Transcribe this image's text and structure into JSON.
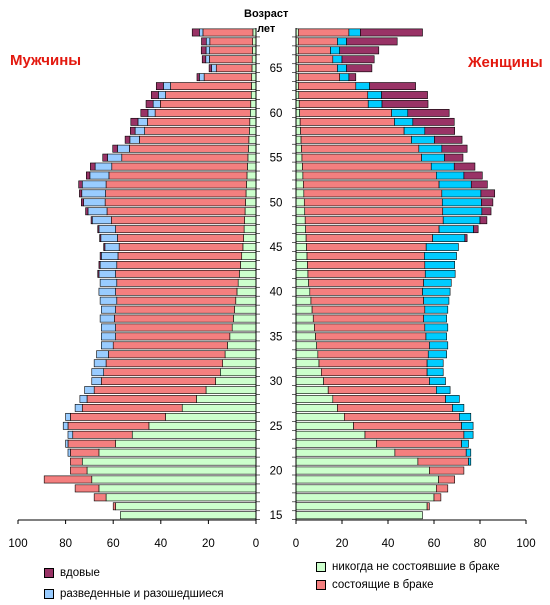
{
  "labels": {
    "male": "Мужчины",
    "female": "Женщины",
    "age_title_line1": "Возраст",
    "age_title_line2": "лет"
  },
  "legend": {
    "widowed": "вдовые",
    "divorced": "разведенные и разошедшиеся",
    "never_married": "никогда не состоявшие в браке",
    "married": "состоящие в браке"
  },
  "colors": {
    "never_married": "#ccffcc",
    "married": "#f47f7f",
    "divorced_male": "#99ccff",
    "divorced_female": "#00ccff",
    "widowed": "#993366"
  },
  "chart_data": {
    "type": "bar",
    "orientation": "horizontal",
    "title": "",
    "ylabel": "Возраст лет",
    "xlim": [
      0,
      100
    ],
    "ages": [
      15,
      16,
      17,
      18,
      19,
      20,
      21,
      22,
      23,
      24,
      25,
      26,
      27,
      28,
      29,
      30,
      31,
      32,
      33,
      34,
      35,
      36,
      37,
      38,
      39,
      40,
      41,
      42,
      43,
      44,
      45,
      46,
      47,
      48,
      49,
      50,
      51,
      52,
      53,
      54,
      55,
      56,
      57,
      58,
      59,
      60,
      61,
      62,
      63,
      64,
      65,
      66,
      67,
      68,
      69
    ],
    "age_ticks": [
      15,
      20,
      25,
      30,
      35,
      40,
      45,
      50,
      55,
      60,
      65
    ],
    "x_ticks": [
      100,
      80,
      60,
      40,
      20,
      0
    ],
    "male": {
      "never_married": [
        57,
        59,
        63,
        66,
        69,
        71,
        73,
        66,
        59,
        52,
        45,
        38,
        31,
        25,
        21,
        17,
        15,
        14,
        13,
        12,
        11,
        10,
        9.5,
        9,
        8.5,
        8,
        7.5,
        7,
        6.5,
        6,
        5.5,
        5.2,
        5,
        4.8,
        4.6,
        4.4,
        4.2,
        4,
        3.8,
        3.6,
        3.4,
        3.2,
        3,
        2.8,
        2.6,
        2.4,
        2.2,
        2,
        1.9,
        1.8,
        1.7,
        1.6,
        1.5,
        1.4,
        1.3
      ],
      "married": [
        0,
        1,
        5,
        10,
        20,
        7,
        5,
        12,
        20,
        25,
        34,
        40,
        42,
        46,
        47,
        48,
        49,
        49,
        49,
        48,
        48,
        49,
        50,
        50,
        50,
        51,
        51,
        52,
        52,
        52,
        52,
        53,
        54,
        56,
        58,
        59,
        59,
        59,
        58,
        57,
        53,
        50,
        46,
        44,
        43,
        40,
        38,
        36,
        34,
        20,
        15,
        18,
        18,
        18,
        21
      ],
      "divorced": [
        0,
        0,
        0,
        0,
        0,
        0,
        0,
        1,
        1,
        2,
        2,
        2,
        3,
        3,
        4,
        4,
        5,
        5,
        5,
        5,
        6,
        6,
        6,
        6,
        7,
        7,
        7,
        7,
        7,
        7,
        6,
        7,
        7,
        8,
        8,
        9,
        10,
        10,
        8,
        7,
        6,
        5,
        4,
        4,
        4,
        3,
        3,
        3,
        3,
        2,
        2,
        1.5,
        1.5,
        1.5,
        1.5
      ],
      "widowed": [
        0,
        0,
        0,
        0,
        0,
        0,
        0,
        0,
        0,
        0,
        0,
        0,
        0,
        0,
        0,
        0,
        0,
        0,
        0,
        0,
        0,
        0,
        0,
        0,
        0,
        0,
        0,
        0.5,
        0.5,
        0.5,
        0.5,
        0.5,
        0.5,
        0.5,
        1,
        1,
        1,
        1.5,
        1.5,
        2,
        2,
        2,
        2,
        2,
        3,
        3,
        3,
        3,
        3,
        1,
        1,
        1.5,
        2,
        2,
        3
      ]
    },
    "female": {
      "never_married": [
        55,
        57,
        60,
        61,
        62,
        58,
        53,
        43,
        35,
        30,
        25,
        21,
        18,
        16,
        14,
        12,
        11,
        10,
        9.5,
        9,
        8.5,
        8,
        7.5,
        7,
        6.5,
        6,
        5.5,
        5.2,
        5,
        4.8,
        4.6,
        4.4,
        4.2,
        4,
        3.8,
        3.6,
        3.4,
        3.2,
        3,
        2.8,
        2.6,
        2.4,
        2.2,
        2,
        1.8,
        1.6,
        1.4,
        1.2,
        1,
        1,
        1,
        1,
        1,
        1,
        1
      ],
      "married": [
        0,
        1,
        3,
        5,
        7,
        15,
        22,
        31,
        37,
        43,
        47,
        50,
        50,
        49,
        47,
        46,
        46,
        47,
        48,
        49,
        48,
        48,
        48,
        49,
        49,
        49,
        50,
        51,
        51,
        51,
        52,
        55,
        58,
        60,
        60,
        60,
        60,
        59,
        58,
        56,
        52,
        51,
        48,
        45,
        41,
        40,
        30,
        30,
        25,
        18,
        17,
        15,
        14,
        17,
        22
      ],
      "divorced": [
        0,
        0,
        0,
        0,
        0,
        0,
        1,
        2,
        3,
        4,
        5,
        5,
        5,
        6,
        6,
        7,
        7,
        7,
        8,
        8,
        9,
        10,
        10,
        10,
        11,
        12,
        12,
        13,
        13,
        14,
        14,
        14,
        15,
        16,
        17,
        17,
        17,
        14,
        12,
        10,
        10,
        10,
        10,
        9,
        8,
        7,
        6,
        6,
        6,
        4,
        4,
        4,
        4,
        4,
        5
      ],
      "widowed": [
        0,
        0,
        0,
        0,
        0,
        0,
        0,
        0,
        0,
        0,
        0,
        0,
        0,
        0,
        0,
        0,
        0,
        0,
        0,
        0,
        0,
        0,
        0,
        0,
        0,
        0,
        0,
        0,
        0,
        0,
        0,
        1,
        2,
        3,
        4,
        5,
        6,
        7,
        8,
        9,
        8,
        11,
        12,
        13,
        18,
        18,
        20,
        20,
        20,
        3,
        11,
        14,
        17,
        22,
        27
      ]
    }
  }
}
